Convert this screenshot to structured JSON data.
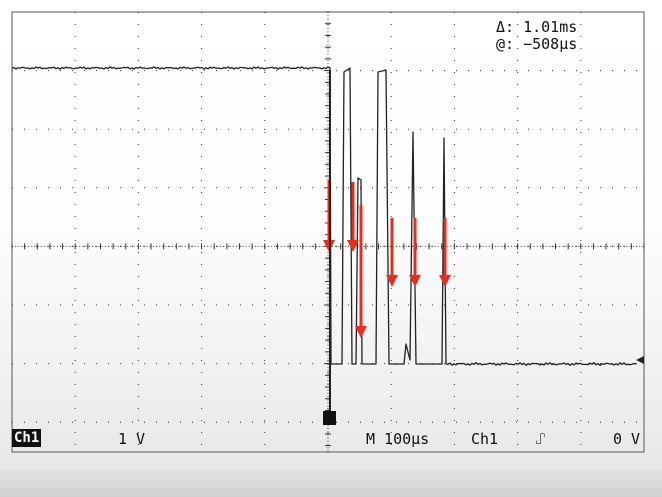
{
  "scope": {
    "cursor_delta": "1.01ms",
    "cursor_at": "−508µs",
    "delta_symbol": "Δ:",
    "at_symbol": "@:"
  },
  "status": {
    "channel_badge": "Ch1",
    "volts_per_div": "1 V",
    "time_per_div": "M 100µs",
    "trigger_channel": "Ch1",
    "trigger_slope_symbol": "⑀",
    "trigger_level": "0 V"
  },
  "colors": {
    "trace": "#222222",
    "grid": "#333333",
    "arrow": "#e23020",
    "background": "#ffffff"
  },
  "icons": [
    "trigger-position-marker-icon",
    "falling-edge-trigger-icon",
    "ground-level-marker-icon"
  ]
}
